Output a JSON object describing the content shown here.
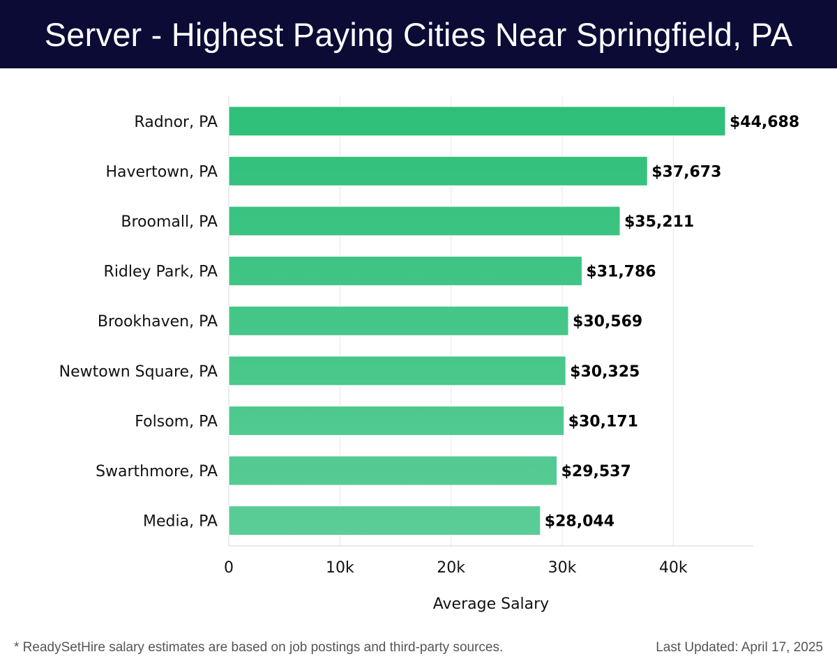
{
  "header": {
    "title": "Server - Highest Paying Cities Near Springfield, PA"
  },
  "footer": {
    "note": "* ReadySetHire salary estimates are based on job postings and third-party sources.",
    "updated": "Last Updated: April 17, 2025"
  },
  "colors": {
    "header_bg": "#0b0b35",
    "bar_top": "#2dbf78",
    "bar_bottom": "#5ccd98",
    "grid": "#e6e6e6"
  },
  "chart_data": {
    "type": "bar",
    "orientation": "horizontal",
    "categories": [
      "Radnor, PA",
      "Havertown, PA",
      "Broomall, PA",
      "Ridley Park, PA",
      "Brookhaven, PA",
      "Newtown Square, PA",
      "Folsom, PA",
      "Swarthmore, PA",
      "Media, PA"
    ],
    "values": [
      44688,
      37673,
      35211,
      31786,
      30569,
      30325,
      30171,
      29537,
      28044
    ],
    "value_labels": [
      "$44,688",
      "$37,673",
      "$35,211",
      "$31,786",
      "$30,569",
      "$30,325",
      "$30,171",
      "$29,537",
      "$28,044"
    ],
    "xlabel": "Average Salary",
    "ylabel": "",
    "xlim": [
      0,
      47200
    ],
    "xticks": [
      0,
      10000,
      20000,
      30000,
      40000
    ],
    "xtick_labels": [
      "0",
      "10k",
      "20k",
      "30k",
      "40k"
    ],
    "grid": true,
    "legend": "none"
  }
}
